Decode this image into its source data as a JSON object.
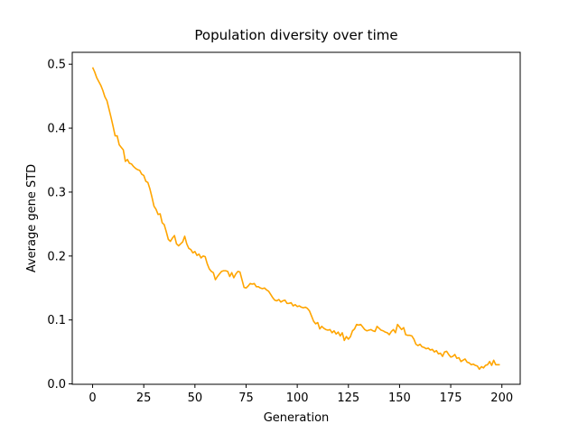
{
  "chart_data": {
    "type": "line",
    "title": "Population diversity over time",
    "xlabel": "Generation",
    "ylabel": "Average gene STD",
    "x": [
      0,
      1,
      2,
      3,
      4,
      5,
      6,
      7,
      8,
      9,
      10,
      11,
      12,
      13,
      14,
      15,
      16,
      17,
      18,
      19,
      20,
      21,
      22,
      23,
      24,
      25,
      26,
      27,
      28,
      29,
      30,
      31,
      32,
      33,
      34,
      35,
      36,
      37,
      38,
      39,
      40,
      41,
      42,
      43,
      44,
      45,
      46,
      47,
      48,
      49,
      50,
      51,
      52,
      53,
      54,
      55,
      56,
      57,
      58,
      59,
      60,
      61,
      62,
      63,
      64,
      65,
      66,
      67,
      68,
      69,
      70,
      71,
      72,
      73,
      74,
      75,
      76,
      77,
      78,
      79,
      80,
      81,
      82,
      83,
      84,
      85,
      86,
      87,
      88,
      89,
      90,
      91,
      92,
      93,
      94,
      95,
      96,
      97,
      98,
      99,
      100,
      101,
      102,
      103,
      104,
      105,
      106,
      107,
      108,
      109,
      110,
      111,
      112,
      113,
      114,
      115,
      116,
      117,
      118,
      119,
      120,
      121,
      122,
      123,
      124,
      125,
      126,
      127,
      128,
      129,
      130,
      131,
      132,
      133,
      134,
      135,
      136,
      137,
      138,
      139,
      140,
      141,
      142,
      143,
      144,
      145,
      146,
      147,
      148,
      149,
      150,
      151,
      152,
      153,
      154,
      155,
      156,
      157,
      158,
      159,
      160,
      161,
      162,
      163,
      164,
      165,
      166,
      167,
      168,
      169,
      170,
      171,
      172,
      173,
      174,
      175,
      176,
      177,
      178,
      179,
      180,
      181,
      182,
      183,
      184,
      185,
      186,
      187,
      188,
      189,
      190,
      191,
      192,
      193,
      194,
      195,
      196,
      197,
      198,
      199
    ],
    "series": [
      {
        "color": "#ffa500",
        "values": [
          0.495,
          0.488,
          0.479,
          0.473,
          0.467,
          0.459,
          0.449,
          0.443,
          0.43,
          0.417,
          0.403,
          0.388,
          0.388,
          0.374,
          0.37,
          0.366,
          0.348,
          0.351,
          0.345,
          0.344,
          0.34,
          0.337,
          0.335,
          0.334,
          0.328,
          0.326,
          0.317,
          0.315,
          0.305,
          0.292,
          0.278,
          0.273,
          0.265,
          0.266,
          0.252,
          0.249,
          0.238,
          0.226,
          0.223,
          0.228,
          0.232,
          0.219,
          0.216,
          0.219,
          0.222,
          0.231,
          0.219,
          0.212,
          0.21,
          0.205,
          0.207,
          0.201,
          0.203,
          0.197,
          0.2,
          0.199,
          0.188,
          0.18,
          0.176,
          0.174,
          0.163,
          0.168,
          0.172,
          0.176,
          0.177,
          0.177,
          0.176,
          0.168,
          0.174,
          0.166,
          0.172,
          0.176,
          0.175,
          0.163,
          0.151,
          0.15,
          0.153,
          0.157,
          0.156,
          0.157,
          0.152,
          0.152,
          0.15,
          0.149,
          0.15,
          0.147,
          0.145,
          0.14,
          0.135,
          0.131,
          0.13,
          0.132,
          0.128,
          0.13,
          0.131,
          0.126,
          0.126,
          0.127,
          0.122,
          0.124,
          0.121,
          0.122,
          0.12,
          0.119,
          0.12,
          0.118,
          0.114,
          0.106,
          0.098,
          0.094,
          0.096,
          0.086,
          0.09,
          0.087,
          0.085,
          0.084,
          0.085,
          0.08,
          0.083,
          0.078,
          0.081,
          0.075,
          0.08,
          0.068,
          0.074,
          0.07,
          0.074,
          0.083,
          0.086,
          0.093,
          0.092,
          0.093,
          0.089,
          0.085,
          0.083,
          0.084,
          0.085,
          0.083,
          0.082,
          0.09,
          0.087,
          0.084,
          0.083,
          0.081,
          0.08,
          0.077,
          0.082,
          0.085,
          0.08,
          0.093,
          0.089,
          0.085,
          0.088,
          0.077,
          0.076,
          0.076,
          0.075,
          0.07,
          0.062,
          0.06,
          0.062,
          0.058,
          0.057,
          0.055,
          0.056,
          0.053,
          0.054,
          0.05,
          0.052,
          0.047,
          0.048,
          0.043,
          0.05,
          0.051,
          0.046,
          0.042,
          0.043,
          0.046,
          0.04,
          0.041,
          0.035,
          0.037,
          0.039,
          0.034,
          0.033,
          0.03,
          0.031,
          0.029,
          0.028,
          0.023,
          0.027,
          0.025,
          0.029,
          0.03,
          0.035,
          0.029,
          0.037,
          0.03,
          0.03,
          0.03
        ]
      }
    ],
    "xlim": [
      -9.95,
      208.95
    ],
    "xticks": [
      0,
      25,
      50,
      75,
      100,
      125,
      150,
      175,
      200
    ],
    "ylim": [
      -0.0006,
      0.5186
    ],
    "yticks": [
      {
        "value": 0,
        "label": "0.0"
      },
      0.1,
      0.2,
      0.3,
      0.4,
      0.5
    ],
    "grid": false
  }
}
